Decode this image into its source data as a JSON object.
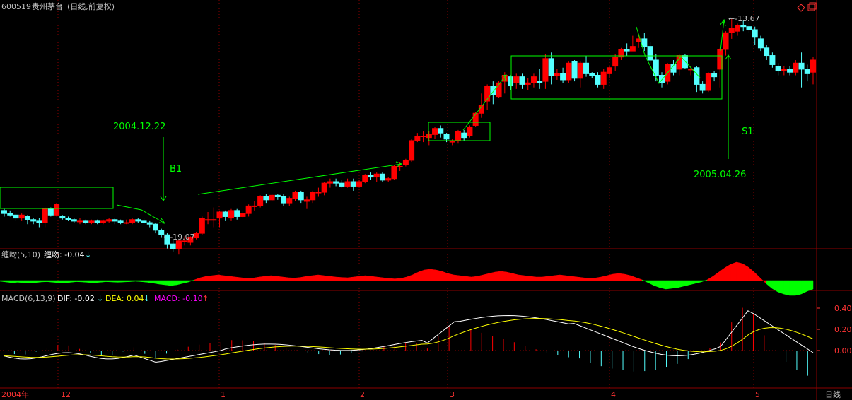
{
  "header": {
    "stock_code": "600519",
    "stock_name": "贵州茅台",
    "period_label": "(日线,前复权)"
  },
  "colors": {
    "up": "#ff0000",
    "down": "#54ffff",
    "annotation": "#00ff00",
    "grid": "#8b0000",
    "label_text": "#c0c0c0",
    "dif": "#ffffff",
    "dea": "#ffff00",
    "macd_label": "#ff00ff",
    "axis_tick": "#ff3333"
  },
  "annotations": {
    "b1_date": "2004.12.22",
    "b1_label": "B1",
    "low_price": "←-19.07",
    "s1_label": "S1",
    "s1_date": "2005.04.26",
    "high_price": "←-13.67"
  },
  "panel_chanwen": {
    "title": "缠吻(5,10)",
    "value_label": "缠吻: -0.04",
    "arrow": "↓"
  },
  "panel_macd": {
    "title": "MACD(6,13,9)",
    "dif_label": "DIF: -0.02",
    "dif_arrow": "↓",
    "dea_label": "DEA: 0.04",
    "dea_arrow": "↓",
    "macd_label": "MACD: -0.10",
    "macd_arrow": "↑"
  },
  "bottom_axis": {
    "labels": [
      "2004年",
      "12",
      "1",
      "2",
      "3",
      "4",
      "5"
    ],
    "period": "日线"
  },
  "chart_data": [
    {
      "type": "candlestick",
      "name": "main",
      "candles": [
        {
          "o": 0.5,
          "c": -0.5,
          "h": 1.0,
          "l": -1.5
        },
        {
          "o": -0.5,
          "c": -1.0,
          "h": 0.5,
          "l": -1.5
        },
        {
          "o": -1.0,
          "c": -2.0,
          "h": -0.5,
          "l": -3.0
        },
        {
          "o": -2.0,
          "c": -1.0,
          "h": -0.5,
          "l": -3.0
        },
        {
          "o": -1.5,
          "c": -2.5,
          "h": -1.0,
          "l": -4.0
        },
        {
          "o": -2.5,
          "c": -3.0,
          "h": -2.0,
          "l": -4.0
        },
        {
          "o": -3.0,
          "c": -3.5,
          "h": -2.0,
          "l": -5.0
        },
        {
          "o": -3.5,
          "c": 1.0,
          "h": 1.5,
          "l": -5.0
        },
        {
          "o": 1.0,
          "c": -1.0,
          "h": 1.5,
          "l": -1.5
        },
        {
          "o": -1.0,
          "c": 2.5,
          "h": 3.0,
          "l": -1.5
        },
        {
          "o": -1.5,
          "c": -2.0,
          "h": -1.0,
          "l": -2.5
        },
        {
          "o": -2.0,
          "c": -2.5,
          "h": -1.5,
          "l": -3.0
        },
        {
          "o": -2.5,
          "c": -3.0,
          "h": -2.0,
          "l": -3.5
        },
        {
          "o": -3.0,
          "c": -3.0,
          "h": -2.0,
          "l": -4.0
        },
        {
          "o": -3.0,
          "c": -3.5,
          "h": -2.5,
          "l": -4.0
        },
        {
          "o": -3.5,
          "c": -3.0,
          "h": -2.5,
          "l": -4.0
        },
        {
          "o": -3.0,
          "c": -3.5,
          "h": -2.5,
          "l": -4.0
        },
        {
          "o": -3.5,
          "c": -3.0,
          "h": -2.5,
          "l": -4.0
        },
        {
          "o": -3.0,
          "c": -2.5,
          "h": -2.0,
          "l": -3.5
        },
        {
          "o": -2.5,
          "c": -3.0,
          "h": -2.0,
          "l": -4.0
        },
        {
          "o": -3.0,
          "c": -3.5,
          "h": -2.5,
          "l": -4.0
        },
        {
          "o": -3.5,
          "c": -3.5,
          "h": -2.5,
          "l": -4.0
        },
        {
          "o": -3.5,
          "c": -2.5,
          "h": -2.0,
          "l": -4.0
        },
        {
          "o": -2.5,
          "c": -3.0,
          "h": -2.0,
          "l": -3.5
        },
        {
          "o": -3.0,
          "c": -3.5,
          "h": -2.0,
          "l": -4.0
        },
        {
          "o": -3.5,
          "c": -4.0,
          "h": -3.0,
          "l": -5.0
        },
        {
          "o": -4.0,
          "c": -6.0,
          "h": -3.5,
          "l": -7.0
        },
        {
          "o": -6.0,
          "c": -7.5,
          "h": -5.5,
          "l": -8.5
        },
        {
          "o": -7.5,
          "c": -10.5,
          "h": -7.0,
          "l": -12.0
        },
        {
          "o": -10.5,
          "c": -12.0,
          "h": -9.0,
          "l": -13.0
        },
        {
          "o": -12.0,
          "c": -9.5,
          "h": -9.0,
          "l": -14.0
        },
        {
          "o": -9.5,
          "c": -9.5,
          "h": -8.0,
          "l": -11.0
        },
        {
          "o": -10.0,
          "c": -8.5,
          "h": -8.0,
          "l": -11.0
        },
        {
          "o": -8.5,
          "c": -7.0,
          "h": -6.5,
          "l": -9.0
        },
        {
          "o": -7.0,
          "c": -2.0,
          "h": -1.5,
          "l": -7.5
        },
        {
          "o": -2.5,
          "c": -2.5,
          "h": 0.0,
          "l": -4.0
        },
        {
          "o": -2.5,
          "c": -2.5,
          "h": 1.5,
          "l": -5.0
        },
        {
          "o": -2.0,
          "c": 0.0,
          "h": 0.5,
          "l": -5.0
        },
        {
          "o": 0.0,
          "c": -1.5,
          "h": 0.5,
          "l": -3.0
        },
        {
          "o": -2.0,
          "c": 0.5,
          "h": 1.0,
          "l": -3.0
        },
        {
          "o": 0.5,
          "c": -1.5,
          "h": 1.0,
          "l": -2.5
        },
        {
          "o": -1.5,
          "c": -0.5,
          "h": 0.5,
          "l": -2.0
        },
        {
          "o": -0.5,
          "c": 2.0,
          "h": 2.5,
          "l": -1.5
        },
        {
          "o": 2.0,
          "c": 2.0,
          "h": 3.5,
          "l": 0.5
        },
        {
          "o": 2.0,
          "c": 5.0,
          "h": 5.5,
          "l": 1.5
        },
        {
          "o": 5.0,
          "c": 4.0,
          "h": 6.0,
          "l": 3.0
        },
        {
          "o": 4.0,
          "c": 5.5,
          "h": 6.0,
          "l": 3.5
        },
        {
          "o": 5.5,
          "c": 5.0,
          "h": 6.0,
          "l": 4.0
        },
        {
          "o": 5.0,
          "c": 3.0,
          "h": 6.0,
          "l": 2.0
        },
        {
          "o": 3.0,
          "c": 4.5,
          "h": 5.0,
          "l": 2.0
        },
        {
          "o": 4.5,
          "c": 6.5,
          "h": 7.0,
          "l": 3.5
        },
        {
          "o": 6.5,
          "c": 4.0,
          "h": 7.0,
          "l": 3.0
        },
        {
          "o": 3.5,
          "c": 4.0,
          "h": 5.0,
          "l": 1.0
        },
        {
          "o": 4.0,
          "c": 6.5,
          "h": 7.0,
          "l": 3.0
        },
        {
          "o": 6.5,
          "c": 6.5,
          "h": 8.0,
          "l": 5.0
        },
        {
          "o": 6.5,
          "c": 9.5,
          "h": 10.0,
          "l": 5.5
        },
        {
          "o": 9.5,
          "c": 10.0,
          "h": 11.0,
          "l": 8.0
        },
        {
          "o": 10.0,
          "c": 9.5,
          "h": 11.0,
          "l": 8.5
        },
        {
          "o": 9.5,
          "c": 8.5,
          "h": 10.5,
          "l": 8.0
        },
        {
          "o": 8.5,
          "c": 10.0,
          "h": 11.0,
          "l": 8.0
        },
        {
          "o": 10.0,
          "c": 8.5,
          "h": 11.0,
          "l": 7.0
        },
        {
          "o": 8.5,
          "c": 10.0,
          "h": 10.5,
          "l": 8.0
        },
        {
          "o": 10.0,
          "c": 12.0,
          "h": 12.5,
          "l": 9.5
        },
        {
          "o": 12.0,
          "c": 11.5,
          "h": 13.0,
          "l": 10.5
        },
        {
          "o": 11.5,
          "c": 12.5,
          "h": 13.0,
          "l": 10.0
        },
        {
          "o": 12.5,
          "c": 10.5,
          "h": 13.0,
          "l": 10.0
        },
        {
          "o": 10.5,
          "c": 11.0,
          "h": 11.5,
          "l": 10.0
        },
        {
          "o": 11.0,
          "c": 15.0,
          "h": 15.5,
          "l": 10.5
        },
        {
          "o": 15.0,
          "c": 15.0,
          "h": 16.5,
          "l": 13.5
        },
        {
          "o": 15.5,
          "c": 17.0,
          "h": 17.5,
          "l": 15.0
        },
        {
          "o": 17.0,
          "c": 23.5,
          "h": 24.0,
          "l": 16.5
        },
        {
          "o": 23.5,
          "c": 25.0,
          "h": 26.0,
          "l": 23.0
        },
        {
          "o": 25.0,
          "c": 25.0,
          "h": 26.5,
          "l": 23.0
        },
        {
          "o": 24.5,
          "c": 25.5,
          "h": 26.5,
          "l": 22.0
        },
        {
          "o": 25.5,
          "c": 27.5,
          "h": 28.0,
          "l": 24.0
        },
        {
          "o": 27.5,
          "c": 26.0,
          "h": 28.5,
          "l": 24.5
        },
        {
          "o": 25.5,
          "c": 24.0,
          "h": 26.0,
          "l": 23.0
        },
        {
          "o": 23.0,
          "c": 23.5,
          "h": 24.0,
          "l": 22.0
        },
        {
          "o": 23.5,
          "c": 26.5,
          "h": 27.0,
          "l": 22.5
        },
        {
          "o": 26.0,
          "c": 24.5,
          "h": 27.0,
          "l": 23.5
        },
        {
          "o": 25.0,
          "c": 28.0,
          "h": 28.5,
          "l": 24.5
        },
        {
          "o": 28.5,
          "c": 32.5,
          "h": 33.0,
          "l": 28.0
        },
        {
          "o": 32.5,
          "c": 35.0,
          "h": 39.0,
          "l": 31.0
        },
        {
          "o": 36.5,
          "c": 41.5,
          "h": 42.0,
          "l": 33.5
        },
        {
          "o": 41.5,
          "c": 38.5,
          "h": 43.0,
          "l": 35.5
        },
        {
          "o": 38.0,
          "c": 42.5,
          "h": 43.0,
          "l": 37.5
        },
        {
          "o": 43.0,
          "c": 45.0,
          "h": 46.0,
          "l": 39.0
        },
        {
          "o": 44.5,
          "c": 41.5,
          "h": 45.0,
          "l": 40.0
        },
        {
          "o": 42.5,
          "c": 44.5,
          "h": 45.5,
          "l": 40.5
        },
        {
          "o": 44.5,
          "c": 42.0,
          "h": 45.5,
          "l": 40.5
        },
        {
          "o": 42.0,
          "c": 42.5,
          "h": 44.0,
          "l": 40.0
        },
        {
          "o": 42.5,
          "c": 44.5,
          "h": 45.5,
          "l": 41.0
        },
        {
          "o": 43.0,
          "c": 42.5,
          "h": 47.0,
          "l": 40.5
        },
        {
          "o": 43.0,
          "c": 50.5,
          "h": 52.0,
          "l": 40.5
        },
        {
          "o": 50.5,
          "c": 45.0,
          "h": 52.5,
          "l": 42.0
        },
        {
          "o": 45.0,
          "c": 45.5,
          "h": 47.0,
          "l": 43.5
        },
        {
          "o": 45.5,
          "c": 43.5,
          "h": 47.5,
          "l": 42.5
        },
        {
          "o": 43.5,
          "c": 49.0,
          "h": 49.5,
          "l": 42.5
        },
        {
          "o": 49.5,
          "c": 44.0,
          "h": 50.0,
          "l": 43.0
        },
        {
          "o": 44.0,
          "c": 49.0,
          "h": 49.5,
          "l": 41.0
        },
        {
          "o": 49.0,
          "c": 45.5,
          "h": 51.5,
          "l": 44.5
        },
        {
          "o": 45.5,
          "c": 45.0,
          "h": 46.0,
          "l": 44.0
        },
        {
          "o": 45.0,
          "c": 42.0,
          "h": 46.0,
          "l": 41.0
        },
        {
          "o": 42.0,
          "c": 46.0,
          "h": 47.0,
          "l": 40.5
        },
        {
          "o": 45.5,
          "c": 47.5,
          "h": 48.0,
          "l": 44.0
        },
        {
          "o": 48.0,
          "c": 51.0,
          "h": 52.0,
          "l": 46.5
        },
        {
          "o": 51.0,
          "c": 53.5,
          "h": 54.0,
          "l": 50.0
        },
        {
          "o": 53.5,
          "c": 53.0,
          "h": 55.5,
          "l": 51.5
        },
        {
          "o": 53.0,
          "c": 54.5,
          "h": 58.0,
          "l": 53.0
        },
        {
          "o": 56.0,
          "c": 57.0,
          "h": 58.5,
          "l": 54.0
        },
        {
          "o": 57.0,
          "c": 54.5,
          "h": 59.0,
          "l": 53.0
        },
        {
          "o": 54.5,
          "c": 50.0,
          "h": 56.0,
          "l": 49.0
        },
        {
          "o": 50.0,
          "c": 45.0,
          "h": 52.0,
          "l": 43.0
        },
        {
          "o": 45.0,
          "c": 42.5,
          "h": 46.0,
          "l": 41.0
        },
        {
          "o": 43.0,
          "c": 48.5,
          "h": 49.0,
          "l": 42.0
        },
        {
          "o": 48.5,
          "c": 46.0,
          "h": 50.0,
          "l": 45.0
        },
        {
          "o": 47.0,
          "c": 51.5,
          "h": 52.0,
          "l": 45.0
        },
        {
          "o": 51.5,
          "c": 47.5,
          "h": 52.0,
          "l": 47.0
        },
        {
          "o": 47.0,
          "c": 47.0,
          "h": 48.0,
          "l": 45.0
        },
        {
          "o": 47.5,
          "c": 42.0,
          "h": 48.0,
          "l": 39.5
        },
        {
          "o": 42.0,
          "c": 40.0,
          "h": 43.0,
          "l": 39.0
        },
        {
          "o": 40.0,
          "c": 45.5,
          "h": 46.0,
          "l": 39.5
        },
        {
          "o": 45.5,
          "c": 44.5,
          "h": 46.5,
          "l": 43.0
        },
        {
          "o": 47.0,
          "c": 53.5,
          "h": 54.0,
          "l": 41.0
        },
        {
          "o": 53.5,
          "c": 59.0,
          "h": 59.5,
          "l": 51.5
        },
        {
          "o": 59.0,
          "c": 60.5,
          "h": 63.5,
          "l": 57.0
        },
        {
          "o": 59.5,
          "c": 61.5,
          "h": 62.0,
          "l": 58.0
        },
        {
          "o": 61.5,
          "c": 61.0,
          "h": 63.0,
          "l": 59.5
        },
        {
          "o": 61.0,
          "c": 60.0,
          "h": 62.5,
          "l": 59.0
        },
        {
          "o": 60.0,
          "c": 57.5,
          "h": 61.0,
          "l": 55.0
        },
        {
          "o": 57.0,
          "c": 54.0,
          "h": 58.0,
          "l": 53.0
        },
        {
          "o": 54.0,
          "c": 51.5,
          "h": 55.0,
          "l": 50.0
        },
        {
          "o": 51.5,
          "c": 48.5,
          "h": 52.5,
          "l": 47.5
        },
        {
          "o": 48.0,
          "c": 46.5,
          "h": 49.0,
          "l": 45.0
        },
        {
          "o": 46.5,
          "c": 47.0,
          "h": 48.0,
          "l": 45.0
        },
        {
          "o": 47.0,
          "c": 46.0,
          "h": 48.0,
          "l": 45.0
        },
        {
          "o": 46.0,
          "c": 49.0,
          "h": 50.0,
          "l": 45.0
        },
        {
          "o": 49.0,
          "c": 47.0,
          "h": 52.5,
          "l": 41.0
        },
        {
          "o": 47.0,
          "c": 45.5,
          "h": 48.5,
          "l": 43.0
        },
        {
          "o": 46.0,
          "c": 50.0,
          "h": 51.0,
          "l": 42.0
        }
      ]
    },
    {
      "type": "area",
      "name": "缠吻(5,10)",
      "values": [
        -0.5,
        -1.0,
        -1.5,
        -1.2,
        -1.5,
        -1.8,
        -1.5,
        -1.0,
        -0.8,
        -1.2,
        -1.5,
        -1.8,
        -1.2,
        -0.8,
        -1.0,
        -1.3,
        -1.5,
        -1.2,
        -0.8,
        -1.0,
        -1.2,
        -1.0,
        -0.8,
        -0.5,
        -0.8,
        -1.2,
        -1.8,
        -2.5,
        -3.0,
        -3.5,
        -3.0,
        -2.0,
        -1.0,
        0.5,
        2.0,
        3.0,
        3.5,
        4.0,
        3.5,
        3.0,
        2.5,
        2.0,
        1.5,
        1.8,
        2.5,
        3.0,
        3.5,
        3.0,
        2.5,
        2.0,
        1.8,
        2.2,
        3.0,
        3.5,
        4.0,
        3.5,
        3.0,
        2.5,
        2.2,
        2.0,
        2.5,
        3.0,
        3.5,
        3.0,
        2.5,
        2.0,
        1.5,
        1.2,
        1.5,
        2.5,
        4.0,
        6.0,
        7.5,
        8.0,
        7.5,
        6.5,
        5.0,
        4.0,
        3.5,
        3.0,
        2.5,
        3.0,
        4.0,
        5.0,
        6.0,
        6.5,
        6.0,
        5.0,
        4.0,
        3.5,
        3.0,
        2.5,
        2.5,
        3.0,
        3.5,
        4.0,
        3.5,
        3.0,
        2.5,
        2.0,
        1.5,
        1.8,
        2.5,
        3.5,
        4.5,
        5.0,
        4.5,
        3.5,
        2.0,
        0.5,
        -1.5,
        -3.5,
        -5.0,
        -6.0,
        -5.5,
        -5.0,
        -4.0,
        -3.0,
        -2.0,
        -1.0,
        0.5,
        3.0,
        6.0,
        9.0,
        11.5,
        13.0,
        12.0,
        9.5,
        6.0,
        2.0,
        -2.0,
        -5.5,
        -8.0,
        -9.5,
        -10.5,
        -10.5,
        -9.5,
        -7.5,
        -6.0
      ]
    },
    {
      "type": "line",
      "name": "MACD(6,13,9)",
      "y_ticks": [
        "0.40",
        "0.20",
        "0.00"
      ],
      "ylim": [
        -0.2,
        0.45
      ]
    }
  ]
}
